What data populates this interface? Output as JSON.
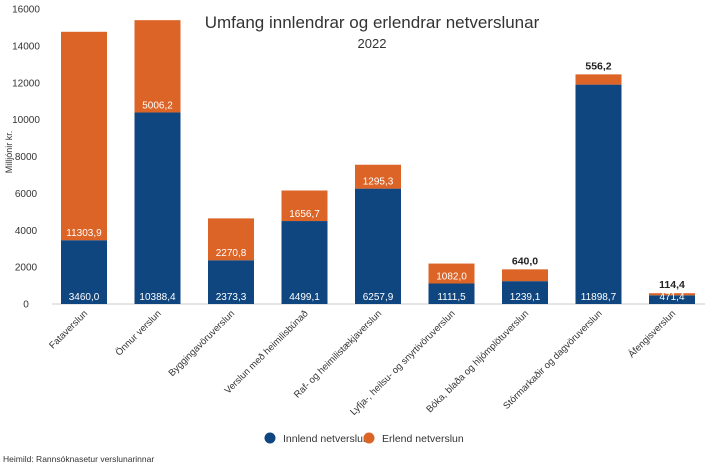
{
  "chart_data": {
    "type": "bar",
    "stacked": true,
    "title": "Umfang innlendrar og erlendrar netverslunar",
    "subtitle": "2022",
    "ylabel": "Milljónir kr.",
    "ylim": [
      0,
      16000
    ],
    "yticks": [
      "0",
      "2000",
      "4000",
      "6000",
      "8000",
      "10000",
      "12000",
      "14000",
      "16000"
    ],
    "grid": false,
    "legend_position": "bottom",
    "categories": [
      "Fataverslun",
      "Önnur verslun",
      "Byggingavöruverslun",
      "Verslun með heimilisbúnað",
      "Raf- og heimilistækjaverslun",
      "Lyfja-, heilsu- og snyrtivöruverslun",
      "Bóka, blaða og hljómplötuverslun",
      "Stórmarkaðir og dagvöruverslun",
      "Áfengisverslun"
    ],
    "series": [
      {
        "name": "Innlend netverslun",
        "color": "#0f467f",
        "values": [
          3460.0,
          10388.4,
          2373.3,
          4499.1,
          6257.9,
          1111.5,
          1239.1,
          11898.7,
          471.4
        ],
        "labels": [
          "3460,0",
          "10388,4",
          "2373,3",
          "4499,1",
          "6257,9",
          "1111,5",
          "1239,1",
          "11898,7",
          "471,4"
        ]
      },
      {
        "name": "Erlend netverslun",
        "color": "#dc6426",
        "values": [
          11303.9,
          5006.2,
          2270.8,
          1656.7,
          1295.3,
          1082.0,
          640.0,
          556.2,
          114.4
        ],
        "labels": [
          "11303,9",
          "5006,2",
          "2270,8",
          "1656,7",
          "1295,3",
          "1082,0",
          "640,0",
          "556,2",
          "114,4"
        ]
      }
    ],
    "source": "Heimild: Rannsóknasetur verslunarinnar"
  }
}
